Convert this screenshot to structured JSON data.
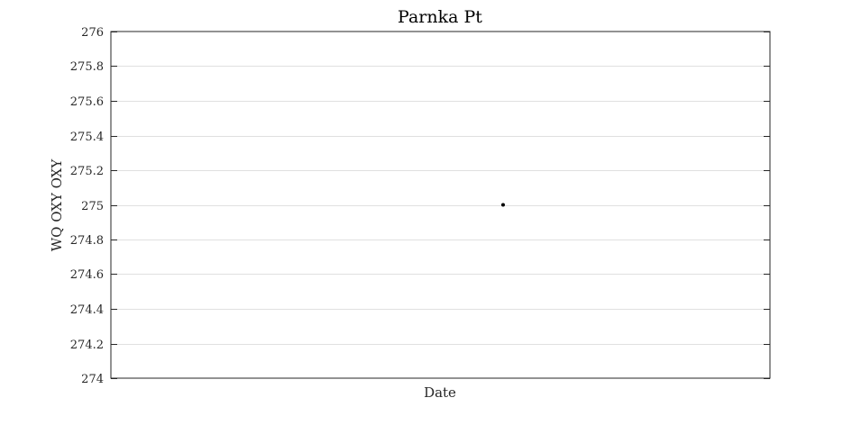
{
  "chart_data": {
    "type": "scatter",
    "title": "Parnka Pt",
    "xlabel": "Date",
    "ylabel": "WQ OXY OXY",
    "ylim": [
      274,
      276
    ],
    "yticks": [
      274,
      274.2,
      274.4,
      274.6,
      274.8,
      275,
      275.2,
      275.4,
      275.6,
      275.8,
      276
    ],
    "ytick_labels": [
      "274",
      "274.2",
      "274.4",
      "274.6",
      "274.8",
      "275",
      "275.2",
      "275.4",
      "275.6",
      "275.8",
      "276"
    ],
    "xtick_labels": [],
    "grid": true,
    "series": [
      {
        "values": [
          275
        ],
        "color": "#000000"
      }
    ]
  },
  "colors": {
    "axis": "#262626",
    "grid": "#e0e0e0",
    "marker": "#000000"
  }
}
